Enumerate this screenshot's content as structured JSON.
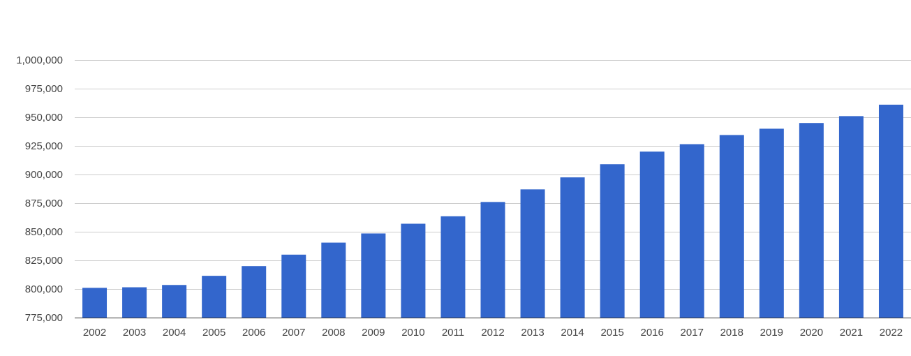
{
  "chart_data": {
    "type": "bar",
    "title": "",
    "xlabel": "",
    "ylabel": "",
    "categories": [
      "2002",
      "2003",
      "2004",
      "2005",
      "2006",
      "2007",
      "2008",
      "2009",
      "2010",
      "2011",
      "2012",
      "2013",
      "2014",
      "2015",
      "2016",
      "2017",
      "2018",
      "2019",
      "2020",
      "2021",
      "2022"
    ],
    "values": [
      801000,
      801500,
      803500,
      811500,
      820000,
      830000,
      840500,
      848500,
      857000,
      863500,
      876000,
      887000,
      897500,
      909000,
      920000,
      926500,
      934500,
      940000,
      945000,
      951000,
      961000
    ],
    "ylim": [
      775000,
      1000000
    ],
    "yticks": [
      775000,
      800000,
      825000,
      850000,
      875000,
      900000,
      925000,
      950000,
      975000,
      1000000
    ],
    "ytick_labels": [
      "775,000",
      "800,000",
      "825,000",
      "850,000",
      "875,000",
      "900,000",
      "925,000",
      "950,000",
      "975,000",
      "1,000,000"
    ],
    "grid": true,
    "legend": "none",
    "bar_color": "#3366cc"
  }
}
